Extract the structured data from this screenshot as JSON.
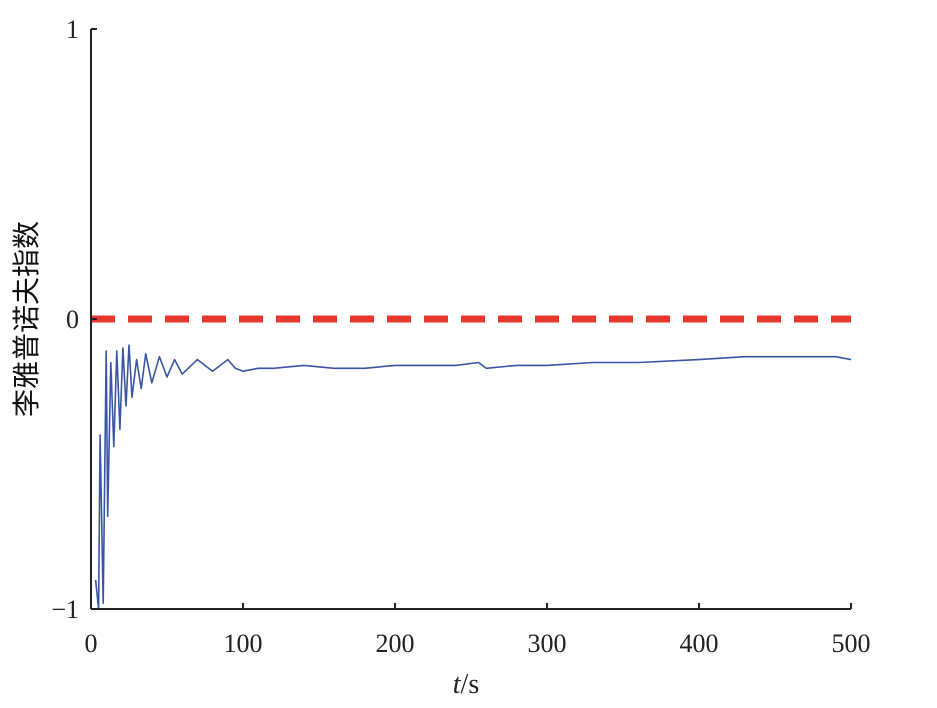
{
  "chart_data": {
    "type": "line",
    "title": "",
    "xlabel_var": "t",
    "xlabel_unit": "/s",
    "ylabel": "李雅普诺夫指数",
    "xlim": [
      0,
      500
    ],
    "ylim": [
      -1,
      1
    ],
    "xticks": [
      "0",
      "100",
      "200",
      "300",
      "400",
      "500"
    ],
    "yticks": [
      "−1",
      "0",
      "1"
    ],
    "grid": false,
    "colors": {
      "series": "#3a56a3",
      "reference": "#e8382e",
      "axis": "#222222"
    },
    "reference_line": {
      "y": 0,
      "style": "dashed"
    },
    "series": [
      {
        "x": [
          3,
          5,
          6,
          8,
          10,
          11,
          13,
          15,
          17,
          19,
          21,
          23,
          25,
          27,
          30,
          33,
          36,
          40,
          45,
          50,
          55,
          60,
          70,
          80,
          90,
          95,
          100,
          110,
          120,
          140,
          160,
          180,
          200,
          220,
          240,
          255,
          260,
          280,
          300,
          330,
          360,
          400,
          430,
          460,
          490,
          500
        ],
        "y": [
          -0.9,
          -1.0,
          -0.4,
          -0.98,
          -0.11,
          -0.68,
          -0.15,
          -0.44,
          -0.11,
          -0.38,
          -0.1,
          -0.3,
          -0.09,
          -0.27,
          -0.14,
          -0.24,
          -0.12,
          -0.22,
          -0.13,
          -0.2,
          -0.14,
          -0.19,
          -0.14,
          -0.18,
          -0.14,
          -0.17,
          -0.18,
          -0.17,
          -0.17,
          -0.16,
          -0.17,
          -0.17,
          -0.16,
          -0.16,
          -0.16,
          -0.15,
          -0.17,
          -0.16,
          -0.16,
          -0.15,
          -0.15,
          -0.14,
          -0.13,
          -0.13,
          -0.13,
          -0.14
        ]
      }
    ]
  }
}
